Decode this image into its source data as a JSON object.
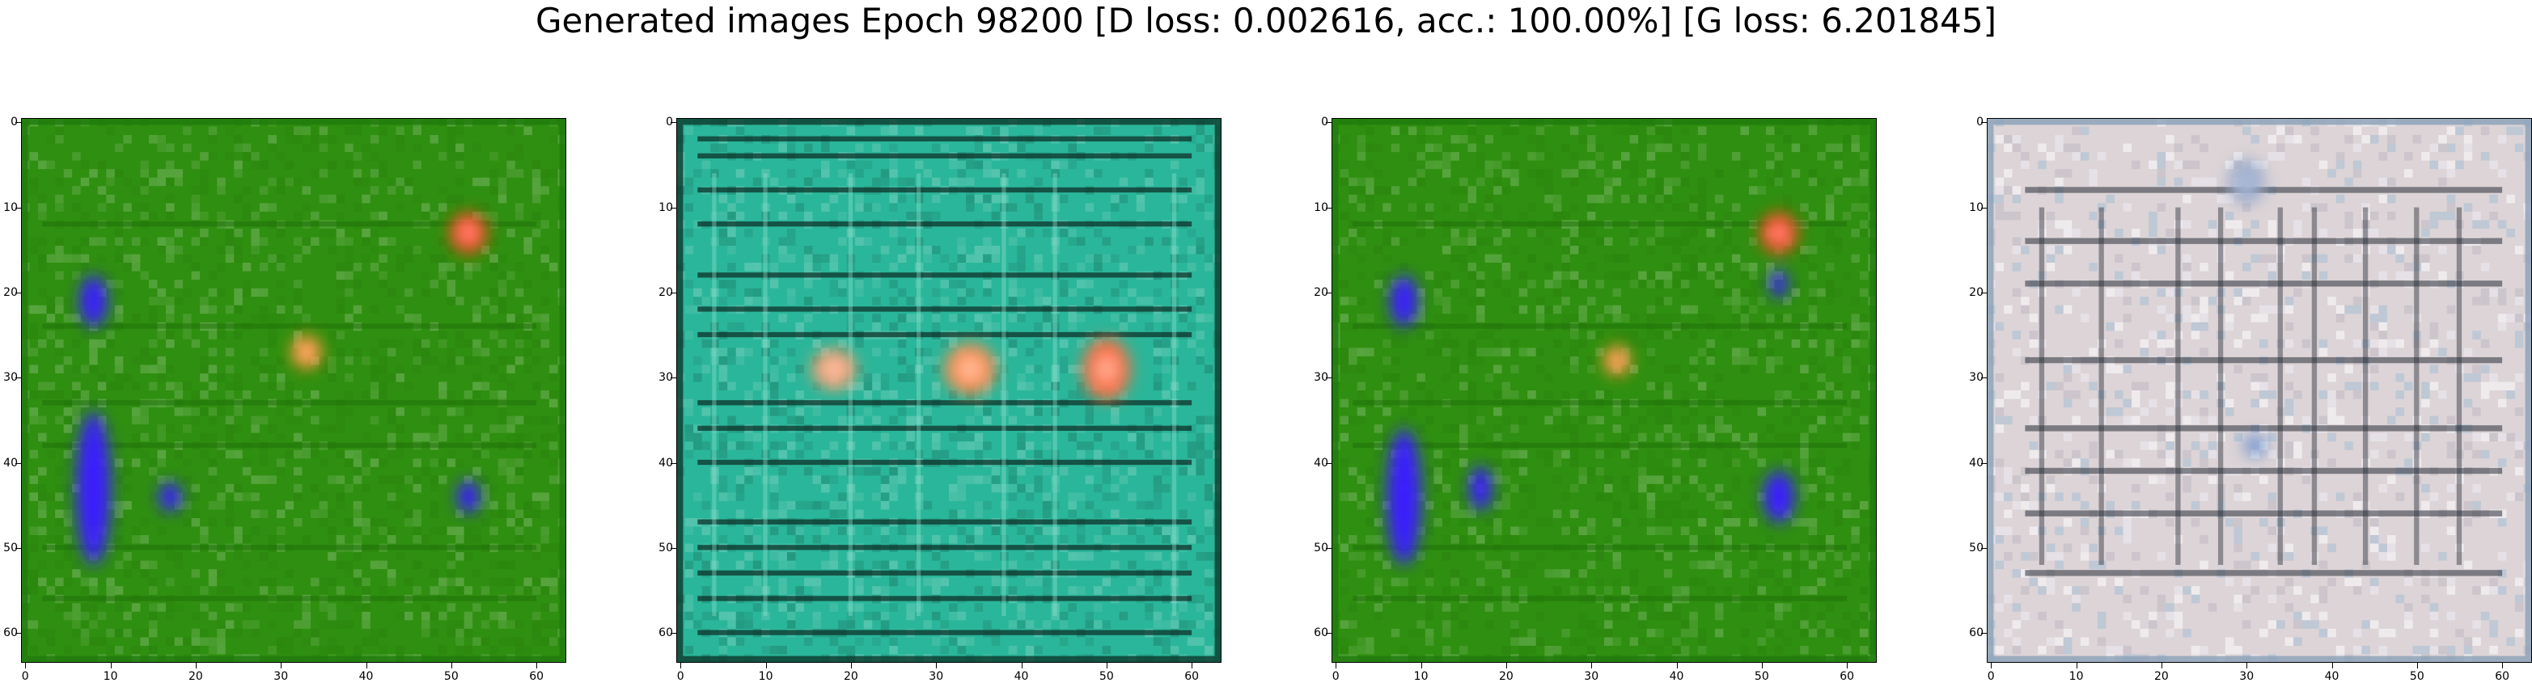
{
  "title": "Generated images Epoch 98200 [D loss: 0.002616, acc.: 100.00%] [G loss: 6.201845]",
  "axes": {
    "x_ticks": [
      "0",
      "10",
      "20",
      "30",
      "40",
      "50",
      "60"
    ],
    "y_ticks": [
      "0",
      "10",
      "20",
      "30",
      "40",
      "50",
      "60"
    ]
  },
  "images": [
    {
      "name": "green-field-with-blue-blobs",
      "background": "#2f8f10",
      "stripe_color": "#1e6e08",
      "border_color": "#1f7a0c",
      "blobs": [
        {
          "x": 52,
          "y": 13,
          "rx": 2.2,
          "ry": 2.4,
          "color": "#ff3a10"
        },
        {
          "x": 33,
          "y": 27,
          "rx": 1.8,
          "ry": 2.0,
          "color": "#ff8a20"
        },
        {
          "x": 8,
          "y": 21,
          "rx": 1.6,
          "ry": 3.0,
          "color": "#3a1cff"
        },
        {
          "x": 8,
          "y": 43,
          "rx": 2.0,
          "ry": 9.0,
          "color": "#3a1cff"
        },
        {
          "x": 17,
          "y": 44,
          "rx": 1.3,
          "ry": 1.7,
          "color": "#3a1cff"
        },
        {
          "x": 52,
          "y": 44,
          "rx": 1.3,
          "ry": 1.9,
          "color": "#3a1cff"
        }
      ]
    },
    {
      "name": "teal-field-with-three-orange-blobs",
      "background": "#2ab69a",
      "stripe_color": "#0b2a22",
      "border_color": "#0c3a2c",
      "blobs": [
        {
          "x": 18,
          "y": 29,
          "rx": 2.6,
          "ry": 2.4,
          "color": "#f49a6a"
        },
        {
          "x": 34,
          "y": 29,
          "rx": 3.0,
          "ry": 3.0,
          "color": "#ff8a4a"
        },
        {
          "x": 50,
          "y": 29,
          "rx": 2.8,
          "ry": 3.6,
          "color": "#ff6a3a"
        }
      ]
    },
    {
      "name": "green-field-with-blue-blobs-variant",
      "background": "#2f8f10",
      "stripe_color": "#1e6e08",
      "border_color": "#1f7a0c",
      "blobs": [
        {
          "x": 52,
          "y": 13,
          "rx": 2.2,
          "ry": 2.4,
          "color": "#ff3a10"
        },
        {
          "x": 33,
          "y": 28,
          "rx": 1.6,
          "ry": 1.8,
          "color": "#ff8a20"
        },
        {
          "x": 8,
          "y": 21,
          "rx": 1.6,
          "ry": 3.0,
          "color": "#3a1cff"
        },
        {
          "x": 8,
          "y": 44,
          "rx": 2.0,
          "ry": 8.0,
          "color": "#3a1cff"
        },
        {
          "x": 17,
          "y": 43,
          "rx": 1.3,
          "ry": 2.6,
          "color": "#3a1cff"
        },
        {
          "x": 52,
          "y": 19,
          "rx": 1.0,
          "ry": 1.6,
          "color": "#3a1cff"
        },
        {
          "x": 52,
          "y": 44,
          "rx": 1.8,
          "ry": 3.0,
          "color": "#3a1cff"
        }
      ]
    },
    {
      "name": "pale-grid-pattern",
      "background": "#dcd4d6",
      "stripe_color": "#2a2f3a",
      "border_color": "#8aa0b8",
      "blobs": [
        {
          "x": 30,
          "y": 7,
          "rx": 2.0,
          "ry": 2.5,
          "color": "#8aa0c8"
        },
        {
          "x": 31,
          "y": 38,
          "rx": 1.2,
          "ry": 1.2,
          "color": "#4a7ac8"
        }
      ]
    }
  ]
}
